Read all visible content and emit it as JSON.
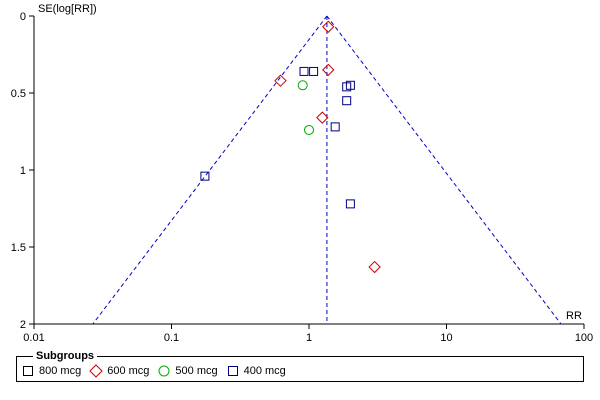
{
  "chart_data": {
    "type": "scatter",
    "subtype": "funnel plot",
    "ylabel": "SE(log[RR])",
    "xlabel": "RR",
    "x_scale": "log",
    "x_range": [
      0.01,
      100
    ],
    "y_range": [
      0,
      2
    ],
    "y_inverted": true,
    "x_ticks": [
      "0.01",
      "0.1",
      "1",
      "10",
      "100"
    ],
    "y_ticks": [
      "0",
      "0.5",
      "1",
      "1.5",
      "2"
    ],
    "pooled_estimate_rr": 1.35,
    "funnel_limits": "pseudo 95% confidence limits (dashed)",
    "grid": false,
    "legend": {
      "title": "Subgroups",
      "placement": "bottom"
    },
    "series": [
      {
        "name": "800 mcg",
        "marker": "square",
        "color": "#000000",
        "points": []
      },
      {
        "name": "600 mcg",
        "marker": "diamond",
        "color": "#cc0000",
        "points": [
          {
            "x": 1.38,
            "y": 0.07
          },
          {
            "x": 0.62,
            "y": 0.42
          },
          {
            "x": 1.38,
            "y": 0.35
          },
          {
            "x": 1.25,
            "y": 0.66
          },
          {
            "x": 3.0,
            "y": 1.63
          }
        ]
      },
      {
        "name": "500 mcg",
        "marker": "circle",
        "color": "#00aa00",
        "points": [
          {
            "x": 0.9,
            "y": 0.45
          },
          {
            "x": 1.0,
            "y": 0.74
          }
        ]
      },
      {
        "name": "400 mcg",
        "marker": "square",
        "color": "#000080",
        "points": [
          {
            "x": 0.92,
            "y": 0.36
          },
          {
            "x": 1.08,
            "y": 0.36
          },
          {
            "x": 1.88,
            "y": 0.46
          },
          {
            "x": 2.0,
            "y": 0.45
          },
          {
            "x": 1.88,
            "y": 0.55
          },
          {
            "x": 1.55,
            "y": 0.72
          },
          {
            "x": 0.175,
            "y": 1.04
          },
          {
            "x": 2.0,
            "y": 1.22
          }
        ]
      }
    ]
  }
}
